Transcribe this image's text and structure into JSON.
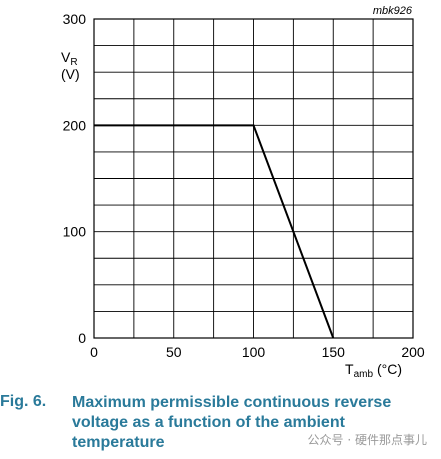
{
  "chart_data": {
    "type": "line",
    "figure_id": "mbk926",
    "ylabel_main": "V",
    "ylabel_sub": "R",
    "ylabel_unit": "(V)",
    "xlabel_main": "T",
    "xlabel_sub": "amb",
    "xlabel_unit": "(°C)",
    "xlim": [
      0,
      200
    ],
    "ylim": [
      0,
      300
    ],
    "x_major_ticks": [
      0,
      50,
      100,
      150,
      200
    ],
    "y_major_ticks": [
      0,
      100,
      200,
      300
    ],
    "x_grid_step": 25,
    "y_grid_step": 25,
    "grid": true,
    "series": [
      {
        "x": [
          0,
          100,
          150
        ],
        "y": [
          200,
          200,
          0
        ]
      }
    ]
  },
  "caption": {
    "label": "Fig. 6.",
    "text": "Maximum permissible continuous reverse voltage as a function of the ambient temperature"
  },
  "watermark": "公众号 · 硬件那点事儿"
}
